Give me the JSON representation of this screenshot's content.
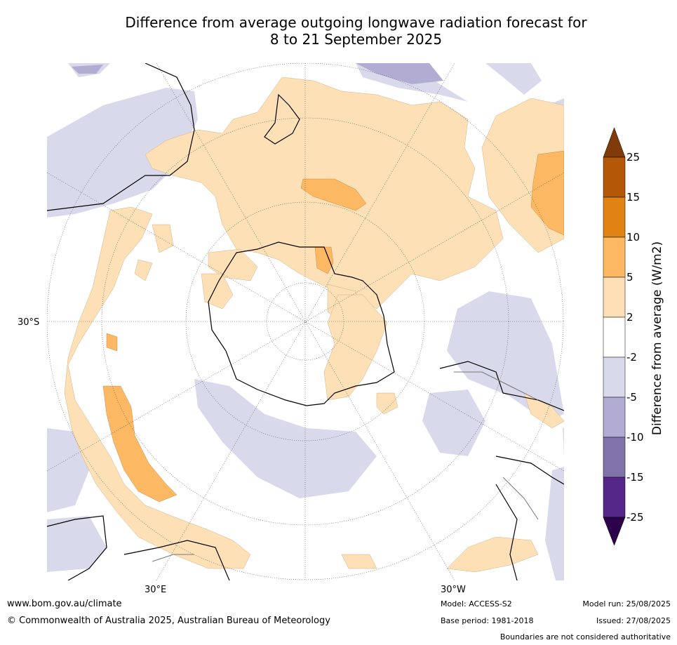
{
  "title_line1": "Difference from average outgoing longwave radiation forecast for",
  "title_line2": "8 to 21 September 2025",
  "map": {
    "projection": "south polar stereographic",
    "graticule_labels": {
      "left": "30°S",
      "bottom_left": "30°E",
      "bottom_right": "30°W"
    }
  },
  "colorbar": {
    "label": "Difference from average (W/m2)",
    "ticks": [
      "25",
      "15",
      "10",
      "5",
      "2",
      "-2",
      "-5",
      "-10",
      "-15",
      "-25"
    ],
    "colors": {
      "over": "#7f3b08",
      "15_25": "#b35806",
      "10_15": "#e08214",
      "5_10": "#fdb863",
      "2_5": "#fee0b6",
      "-2_2": "#ffffff",
      "-5_-2": "#d8daeb",
      "-10_-5": "#b2abd2",
      "-15_-10": "#8073ac",
      "-25_-15": "#542788",
      "under": "#2d004b"
    }
  },
  "footer": {
    "website": "www.bom.gov.au/climate",
    "copyright": "© Commonwealth of Australia 2025, Australian Bureau of Meteorology",
    "model": "Model: ACCESS-S2",
    "base_period": "Base period: 1981-2018",
    "model_run": "Model run: 25/08/2025",
    "issued": "Issued: 27/08/2025",
    "disclaimer": "Boundaries are not considered authoritative"
  }
}
